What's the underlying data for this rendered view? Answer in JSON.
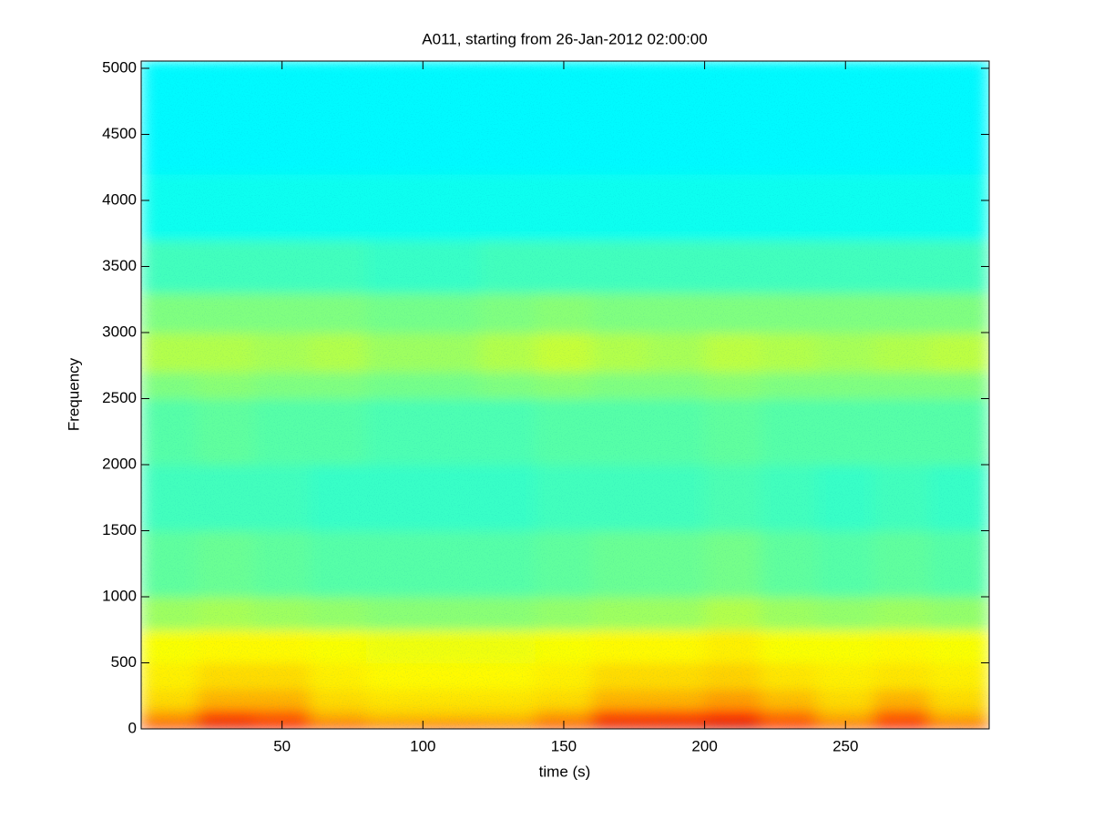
{
  "chart_data": {
    "type": "heatmap",
    "title": "A011, starting from 26-Jan-2012 02:00:00",
    "xlabel": "time (s)",
    "ylabel": "Frequency",
    "colormap": "jet",
    "clim": [
      0,
      1
    ],
    "x_bins": [
      0,
      20,
      40,
      60,
      80,
      100,
      120,
      140,
      160,
      180,
      200,
      220,
      240,
      260,
      280,
      301
    ],
    "y_bins": [
      0,
      50,
      150,
      300,
      500,
      750,
      1000,
      1500,
      2000,
      2500,
      2700,
      3000,
      3300,
      3700,
      4200,
      5055
    ],
    "values": [
      [
        0.84,
        0.9,
        0.88,
        0.82,
        0.78,
        0.8,
        0.78,
        0.82,
        0.9,
        0.9,
        0.92,
        0.86,
        0.8,
        0.88,
        0.8
      ],
      [
        0.72,
        0.8,
        0.78,
        0.7,
        0.68,
        0.68,
        0.68,
        0.72,
        0.8,
        0.8,
        0.82,
        0.76,
        0.7,
        0.78,
        0.7
      ],
      [
        0.66,
        0.7,
        0.7,
        0.66,
        0.65,
        0.65,
        0.65,
        0.66,
        0.7,
        0.7,
        0.72,
        0.69,
        0.66,
        0.7,
        0.66
      ],
      [
        0.64,
        0.66,
        0.66,
        0.64,
        0.63,
        0.63,
        0.63,
        0.64,
        0.66,
        0.66,
        0.67,
        0.65,
        0.64,
        0.65,
        0.64
      ],
      [
        0.62,
        0.63,
        0.63,
        0.62,
        0.61,
        0.61,
        0.61,
        0.62,
        0.63,
        0.63,
        0.64,
        0.62,
        0.62,
        0.63,
        0.62
      ],
      [
        0.53,
        0.54,
        0.53,
        0.52,
        0.51,
        0.51,
        0.51,
        0.52,
        0.53,
        0.53,
        0.55,
        0.53,
        0.52,
        0.53,
        0.52
      ],
      [
        0.47,
        0.48,
        0.47,
        0.46,
        0.46,
        0.46,
        0.46,
        0.47,
        0.48,
        0.48,
        0.49,
        0.47,
        0.46,
        0.47,
        0.46
      ],
      [
        0.44,
        0.44,
        0.44,
        0.43,
        0.43,
        0.43,
        0.43,
        0.44,
        0.44,
        0.44,
        0.45,
        0.44,
        0.43,
        0.44,
        0.43
      ],
      [
        0.46,
        0.47,
        0.46,
        0.46,
        0.45,
        0.45,
        0.45,
        0.46,
        0.46,
        0.46,
        0.47,
        0.46,
        0.46,
        0.46,
        0.46
      ],
      [
        0.5,
        0.51,
        0.5,
        0.5,
        0.49,
        0.49,
        0.5,
        0.51,
        0.5,
        0.5,
        0.51,
        0.5,
        0.5,
        0.5,
        0.5
      ],
      [
        0.55,
        0.55,
        0.54,
        0.55,
        0.53,
        0.53,
        0.55,
        0.57,
        0.55,
        0.54,
        0.56,
        0.55,
        0.54,
        0.55,
        0.56
      ],
      [
        0.5,
        0.5,
        0.5,
        0.5,
        0.49,
        0.49,
        0.5,
        0.51,
        0.5,
        0.5,
        0.5,
        0.5,
        0.5,
        0.5,
        0.5
      ],
      [
        0.44,
        0.44,
        0.44,
        0.44,
        0.43,
        0.43,
        0.44,
        0.44,
        0.44,
        0.44,
        0.44,
        0.44,
        0.44,
        0.44,
        0.44
      ],
      [
        0.39,
        0.39,
        0.39,
        0.39,
        0.39,
        0.39,
        0.39,
        0.39,
        0.39,
        0.39,
        0.39,
        0.39,
        0.39,
        0.39,
        0.39
      ],
      [
        0.37,
        0.37,
        0.37,
        0.37,
        0.37,
        0.37,
        0.37,
        0.37,
        0.37,
        0.37,
        0.37,
        0.37,
        0.37,
        0.37,
        0.37
      ]
    ],
    "xlim": [
      0,
      301
    ],
    "ylim": [
      0,
      5055
    ],
    "xticks": [
      50,
      100,
      150,
      200,
      250
    ],
    "yticks": [
      0,
      500,
      1000,
      1500,
      2000,
      2500,
      3000,
      3500,
      4000,
      4500,
      5000
    ]
  }
}
